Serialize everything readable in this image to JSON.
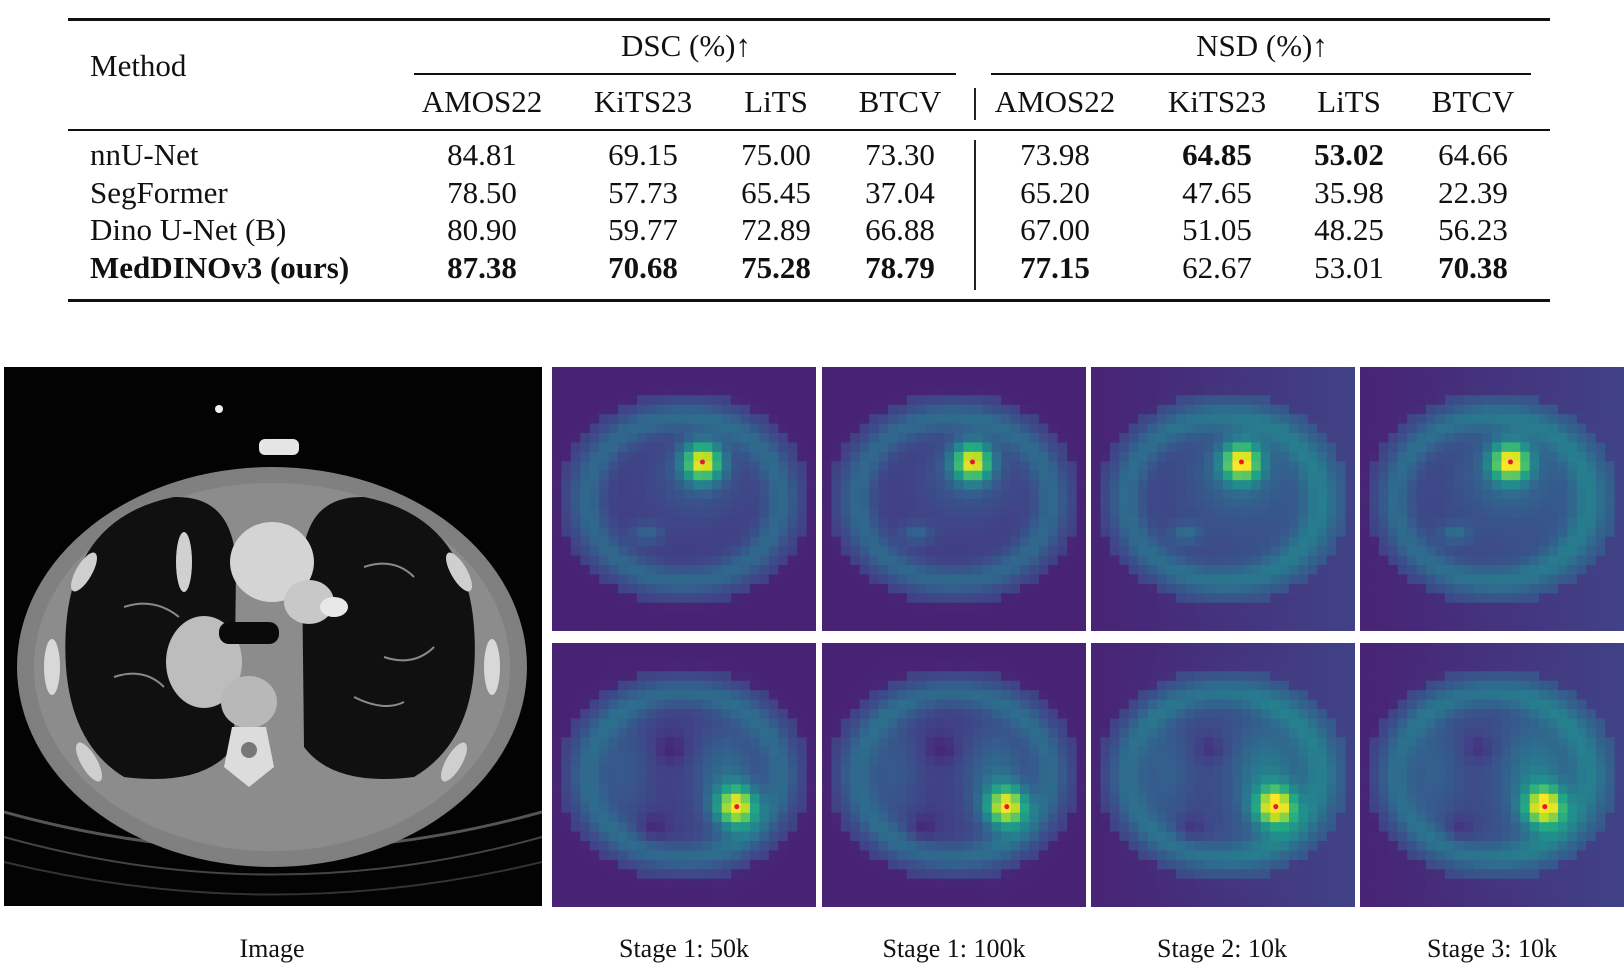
{
  "table": {
    "method_header": "Method",
    "group_headers": [
      "DSC (%)↑",
      "NSD (%)↑"
    ],
    "sub_headers": [
      "AMOS22",
      "KiTS23",
      "LiTS",
      "BTCV",
      "AMOS22",
      "KiTS23",
      "LiTS",
      "BTCV"
    ],
    "rows": [
      {
        "method": "nnU-Net",
        "values": [
          "84.81",
          "69.15",
          "75.00",
          "73.30",
          "73.98",
          "64.85",
          "53.02",
          "64.66"
        ]
      },
      {
        "method": "SegFormer",
        "values": [
          "78.50",
          "57.73",
          "65.45",
          "37.04",
          "65.20",
          "47.65",
          "35.98",
          "22.39"
        ]
      },
      {
        "method": "Dino U-Net (B)",
        "values": [
          "80.90",
          "59.77",
          "72.89",
          "66.88",
          "67.00",
          "51.05",
          "48.25",
          "56.23"
        ]
      },
      {
        "method": "MedDINOv3 (ours)",
        "values": [
          "87.38",
          "70.68",
          "75.28",
          "78.79",
          "77.15",
          "62.67",
          "53.01",
          "70.38"
        ]
      }
    ]
  },
  "figure": {
    "captions": [
      "Image",
      "Stage 1: 50k",
      "Stage 1: 100k",
      "Stage 2: 10k",
      "Stage 3: 10k"
    ],
    "colormap_name": "viridis",
    "query_point_color": "#e8143c"
  }
}
